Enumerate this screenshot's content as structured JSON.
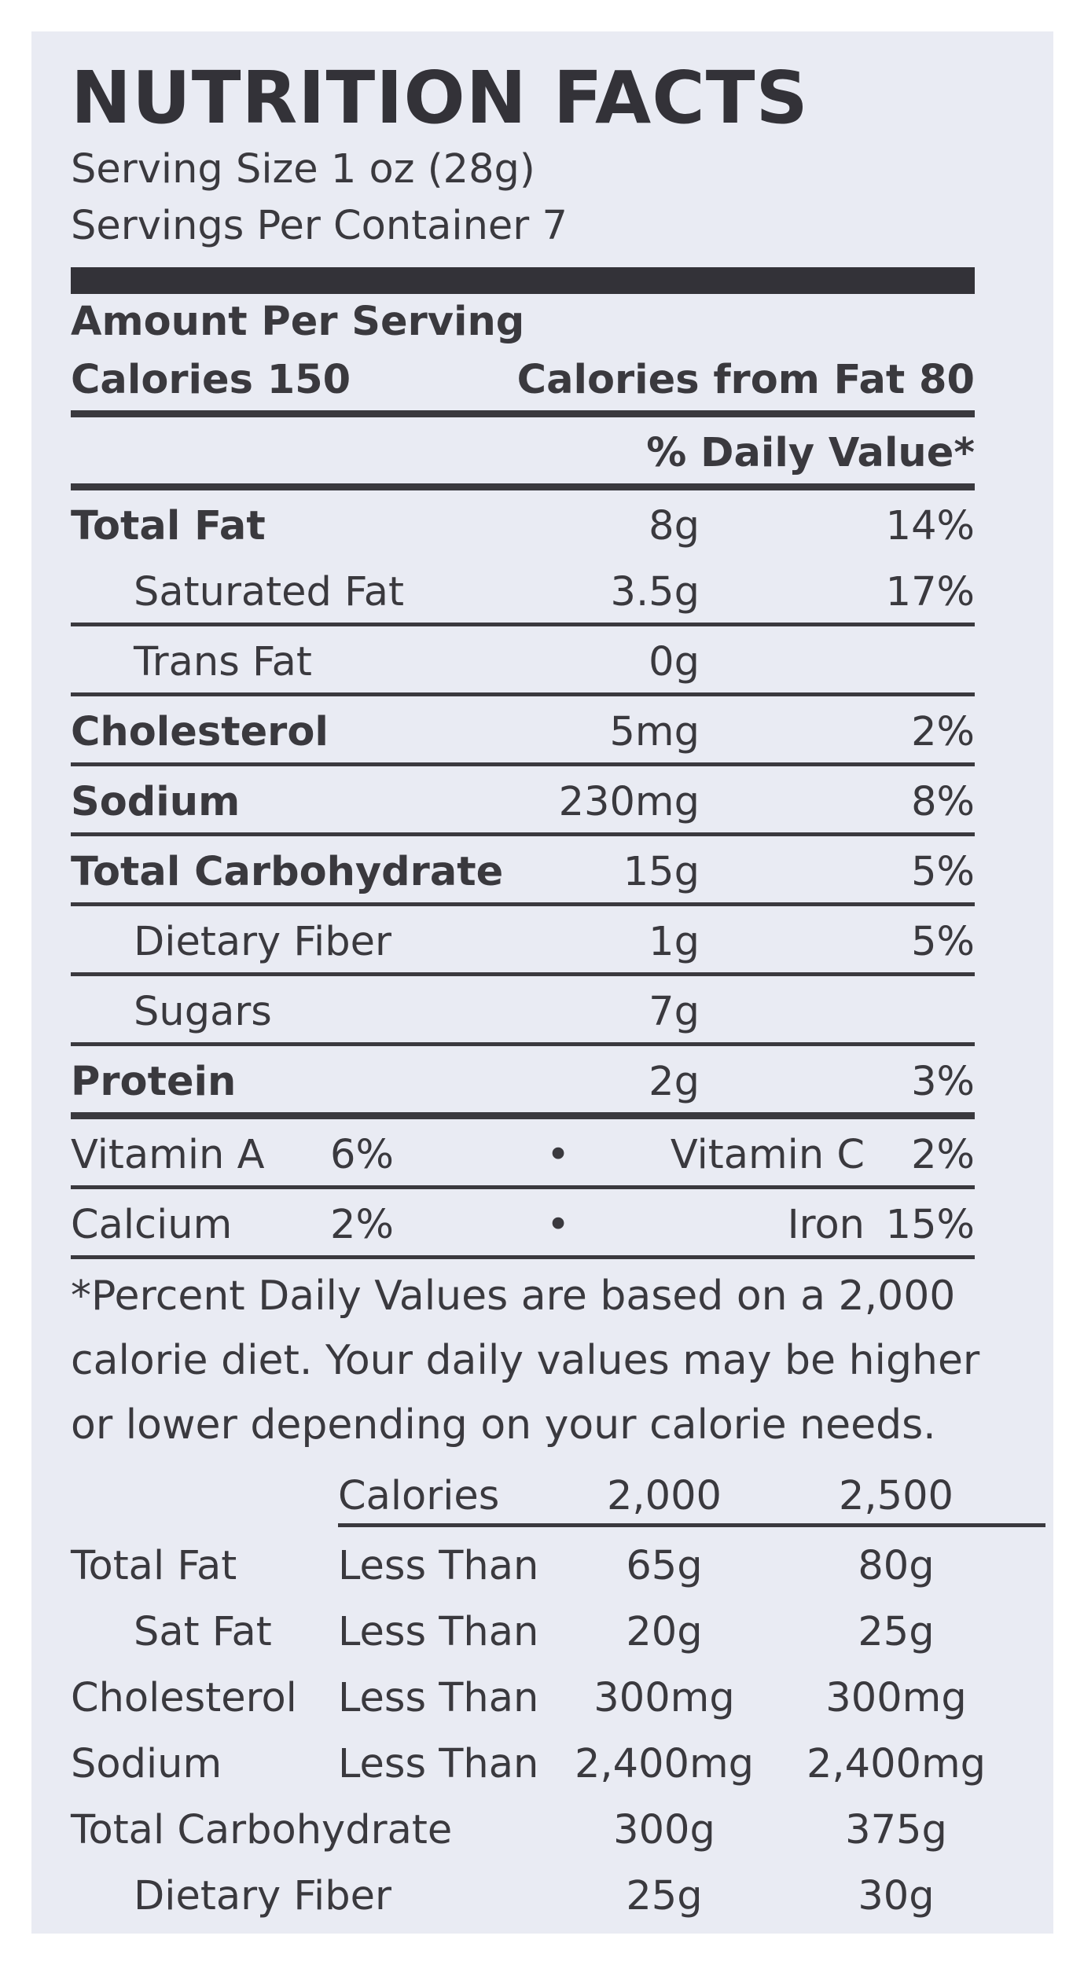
{
  "title": "NUTRITION FACTS",
  "serving_size": "Serving Size 1 oz (28g)",
  "servings_per_container": "Servings Per Container 7",
  "amount_per_serving": "Amount Per Serving",
  "calories": "Calories 150",
  "calories_from_fat": "Calories from Fat 80",
  "daily_value_header": "% Daily Value*",
  "nutrients": [
    {
      "name": "Total Fat",
      "amount": "8g",
      "pct": "14%"
    },
    {
      "name": "Saturated Fat",
      "amount": "3.5g",
      "pct": "17%"
    },
    {
      "name": "Trans Fat",
      "amount": "0g",
      "pct": ""
    },
    {
      "name": "Cholesterol",
      "amount": "5mg",
      "pct": "2%"
    },
    {
      "name": "Sodium",
      "amount": "230mg",
      "pct": "8%"
    },
    {
      "name": "Total Carbohydrate",
      "amount": "15g",
      "pct": "5%"
    },
    {
      "name": "Dietary Fiber",
      "amount": "1g",
      "pct": "5%"
    },
    {
      "name": "Sugars",
      "amount": "7g",
      "pct": ""
    },
    {
      "name": "Protein",
      "amount": "2g",
      "pct": "3%"
    }
  ],
  "vitamins": [
    {
      "left_name": "Vitamin A",
      "left_pct": "6%",
      "right_name": "Vitamin C",
      "right_pct": "2%"
    },
    {
      "left_name": "Calcium",
      "left_pct": "2%",
      "right_name": "Iron",
      "right_pct": "15%"
    }
  ],
  "bullet": "•",
  "footnote": "*Percent Daily Values are based on a 2,000 calorie diet. Your daily values may be higher or lower depending on your calorie needs.",
  "footer_table": {
    "header": {
      "label": "Calories",
      "col1": "2,000",
      "col2": "2,500"
    },
    "rows": [
      {
        "name": "Total Fat",
        "qualifier": "Less Than",
        "col1": "65g",
        "col2": "80g"
      },
      {
        "name": "Sat Fat",
        "qualifier": "Less Than",
        "col1": "20g",
        "col2": "25g"
      },
      {
        "name": "Cholesterol",
        "qualifier": "Less Than",
        "col1": "300mg",
        "col2": "300mg"
      },
      {
        "name": "Sodium",
        "qualifier": "Less Than",
        "col1": "2,400mg",
        "col2": "2,400mg"
      },
      {
        "name": "Total Carbohydrate",
        "qualifier": "",
        "col1": "300g",
        "col2": "375g"
      },
      {
        "name": "Dietary Fiber",
        "qualifier": "",
        "col1": "25g",
        "col2": "30g"
      }
    ]
  }
}
